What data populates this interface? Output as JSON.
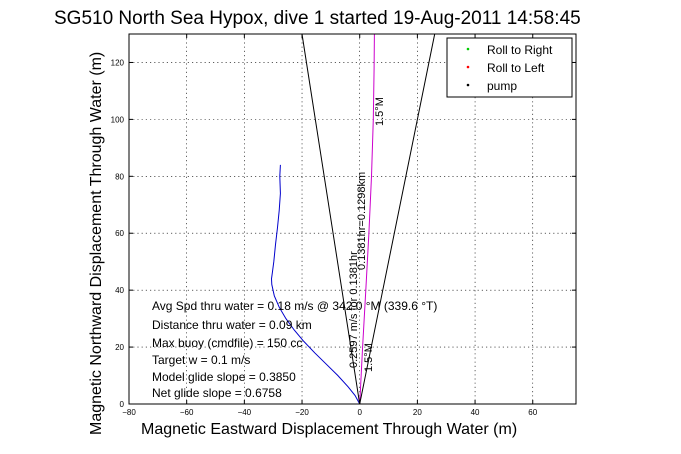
{
  "chart_data": {
    "type": "line",
    "title": "SG510 North Sea Hypox, dive 1 started 19-Aug-2011 14:58:45",
    "xlabel": "Magnetic Eastward Displacement Through Water (m)",
    "ylabel": "Magnetic Northward Displacement Through Water (m)",
    "xlim": [
      -80,
      75
    ],
    "ylim": [
      0,
      130
    ],
    "xticks": [
      -80,
      -60,
      -40,
      -20,
      0,
      20,
      40,
      60
    ],
    "yticks": [
      0,
      20,
      40,
      60,
      80,
      100,
      120
    ],
    "grid": true,
    "legend_position": "top-right",
    "legend": [
      {
        "name": "Roll to Right",
        "color": "#00cc00"
      },
      {
        "name": "Roll to Left",
        "color": "#ff0000"
      },
      {
        "name": "pump",
        "color": "#000000"
      }
    ],
    "series": [
      {
        "color": "#0000cc",
        "x": [
          -27.5,
          -27.7,
          -27.5,
          -27.9,
          -28.5,
          -29.2,
          -29.8,
          -30.3,
          -30.6,
          -30.5,
          -29.6,
          -27.9,
          -25.6,
          -22.7,
          -19.4,
          -15.6,
          -11.6,
          -7.6,
          -4.0,
          -1.6,
          0
        ],
        "y": [
          84,
          80,
          74,
          68,
          62,
          56,
          50,
          46,
          44,
          42,
          38,
          34,
          30,
          26,
          22,
          18,
          14,
          10,
          6,
          3,
          0
        ]
      },
      {
        "color": "#cc00cc",
        "x": [
          0,
          1.0,
          2.1,
          3.2,
          4.1,
          4.7,
          5.0,
          5.1
        ],
        "y": [
          0,
          20,
          40,
          60,
          80,
          100,
          118,
          130
        ]
      },
      {
        "color": "#000000",
        "x": [
          -20,
          0,
          26
        ],
        "y": [
          130,
          0,
          130
        ]
      }
    ],
    "annotations": [
      "1.5°M",
      "0.1381hr=0.1298km",
      "0.2597 m/s for 0.1381hr",
      "1.5°M"
    ],
    "stats": [
      "Avg Spd thru water =  0.18 m/s @ 342.0    °M (339.6 °T)",
      "Distance thru water =  0.09 km",
      "Max buoy (cmdfile) = 150 cc",
      "Target w = 0.1 m/s",
      "Model glide slope = 0.3850",
      "Net glide slope = 0.6758"
    ]
  }
}
